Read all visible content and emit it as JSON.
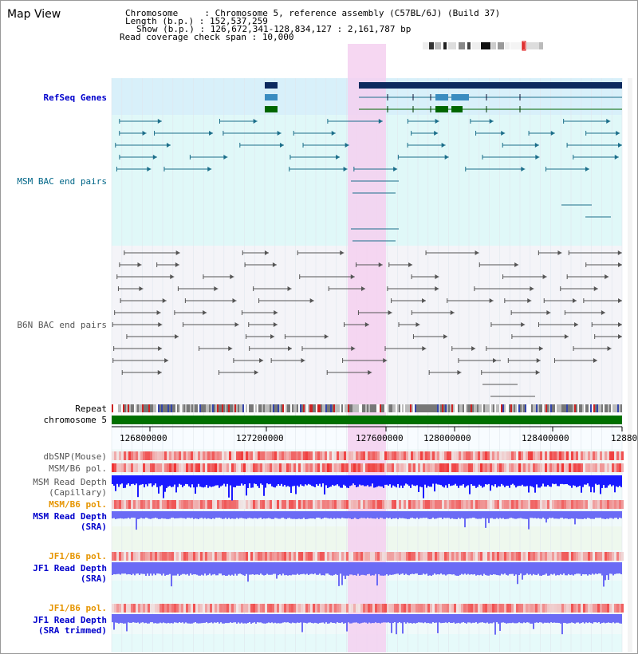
{
  "title": "Map View",
  "info": {
    "chromosome_label": "Chromosome     : ",
    "chromosome_value": "Chromosome 5, reference assembly (C57BL/6J) (Build 37)",
    "length_label": "Length (b.p.) : ",
    "length_value": "152,537,259",
    "show_label": "Show (b.p.) : ",
    "show_value": "126,672,341-128,834,127 : 2,161,787 bp",
    "coverage_label": "Read coverage check span : ",
    "coverage_value": "10,000"
  },
  "tracks": {
    "refseq": "RefSeq Genes",
    "msm_bac": "MSM BAC end pairs",
    "b6n_bac": "B6N BAC end pairs",
    "repeat": "Repeat",
    "chromosome": "chromosome 5",
    "dbsnp": "dbSNP(Mouse)",
    "msm_b6_pol": "MSM/B6 pol.",
    "msm_depth_cap_1": "MSM Read Depth",
    "msm_depth_cap_2": "(Capillary)",
    "msm_b6_pol_sra": "MSM/B6 pol.",
    "msm_depth_sra_1": "MSM Read Depth",
    "msm_depth_sra_2": "(SRA)",
    "jf1_b6_pol": "JF1/B6 pol.",
    "jf1_depth_1": "JF1 Read Depth",
    "jf1_depth_2": "(SRA)",
    "jf1_b6_pol_2": "JF1/B6 pol.",
    "jf1_trim_1": "JF1 Read Depth",
    "jf1_trim_2": "(SRA trimmed)"
  },
  "axis": {
    "ticks": [
      "126800000",
      "127200000",
      "127600000",
      "128000000",
      "128400000",
      "12880"
    ]
  },
  "colors": {
    "highlight": "#f5d0f0",
    "refseq_bg": "#d8f0fa",
    "msm_bg": "#e0f8f8",
    "b6n_bg": "#f4f4f8",
    "gene_dark": "#0d2a5e",
    "gene_mid": "#3a8cc0",
    "gene_green": "#006600",
    "msm_pair": "#1b6e8a",
    "b6n_pair": "#555555",
    "chromosome_bar": "#007000",
    "depth_blue": "#1a1aff",
    "depth_light": "#6b6bf5"
  }
}
